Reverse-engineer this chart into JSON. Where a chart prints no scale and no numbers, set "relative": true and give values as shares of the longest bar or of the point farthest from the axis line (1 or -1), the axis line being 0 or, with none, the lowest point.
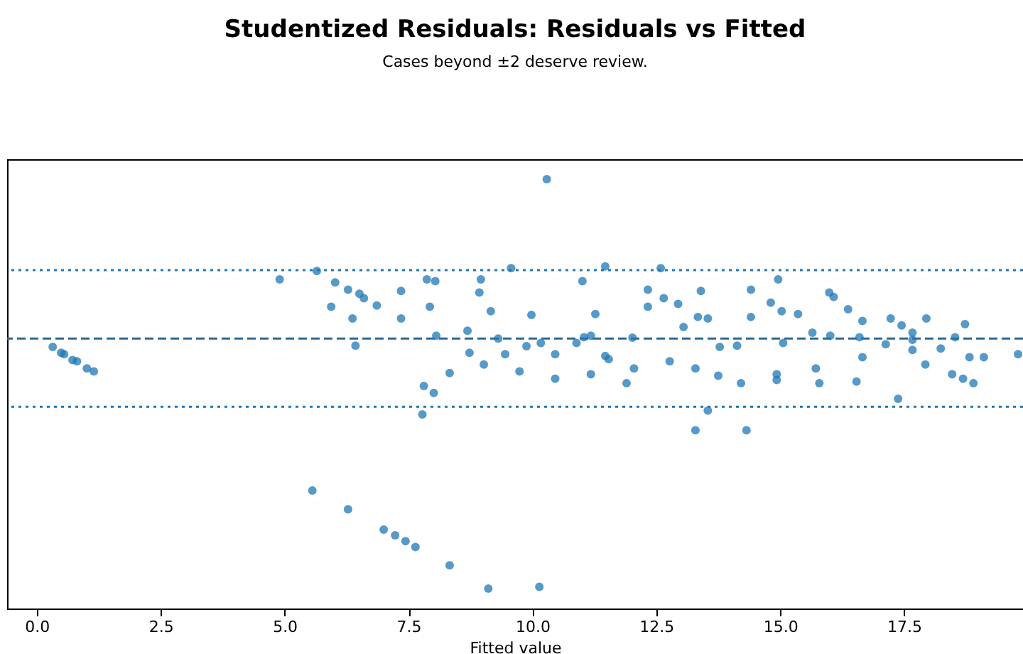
{
  "chart_data": {
    "type": "scatter",
    "title": "Studentized Residuals: Residuals vs Fitted",
    "subtitle": "Cases beyond ±2 deserve review.",
    "xlabel": "Fitted value",
    "x": [
      0.32,
      0.49,
      0.55,
      0.72,
      0.81,
      1.01,
      1.15,
      4.9,
      5.65,
      6.02,
      5.94,
      6.28,
      6.37,
      6.43,
      6.51,
      6.6,
      6.86,
      7.35,
      7.87,
      8.04,
      5.56,
      6.28,
      7.0,
      7.23,
      7.44,
      7.64,
      8.33,
      9.11,
      10.14,
      10.29,
      9.57,
      11.47,
      12.59,
      11.01,
      7.81,
      7.78,
      8.01,
      8.33,
      13.29,
      13.54,
      14.32,
      17.38,
      16.54,
      17.93,
      19.8,
      8.96,
      14.96,
      15.99,
      18.73,
      14.93,
      15.79,
      12.65,
      13.4,
      14.81,
      7.35,
      8.06,
      8.73,
      7.93,
      8.69,
      9.45,
      8.93,
      9.98,
      11.04,
      9.16,
      10.17,
      11.18,
      9.02,
      9.74,
      10.46,
      9.31,
      9.88,
      10.46,
      11.27,
      12.02,
      12.77,
      10.89,
      11.47,
      12.05,
      11.18,
      11.54,
      11.9,
      12.33,
      12.94,
      13.54,
      12.33,
      13.05,
      13.78,
      13.29,
      13.75,
      14.21,
      13.34,
      14.13,
      14.93,
      14.41,
      15.03,
      15.65,
      14.41,
      15.06,
      15.72,
      15.36,
      16.01,
      16.66,
      16.08,
      16.37,
      16.66,
      17.23,
      17.45,
      17.67,
      17.95,
      18.53,
      19.11,
      17.67,
      18.24,
      18.82,
      18.47,
      18.69,
      18.9,
      16.6,
      17.13,
      17.67
    ],
    "series": [
      {
        "color": "#1f77b4",
        "values": [
          -0.034,
          -0.057,
          -0.063,
          -0.086,
          -0.091,
          -0.12,
          -0.132,
          0.236,
          0.27,
          0.224,
          0.127,
          0.195,
          0.08,
          -0.029,
          0.179,
          0.161,
          0.132,
          0.19,
          0.236,
          0.229,
          -0.608,
          -0.683,
          -0.764,
          -0.787,
          -0.81,
          -0.834,
          -0.907,
          -1,
          -0.993,
          0.637,
          0.281,
          0.288,
          0.281,
          0.229,
          -0.19,
          -0.304,
          -0.218,
          -0.138,
          -0.367,
          -0.288,
          -0.367,
          -0.241,
          -0.172,
          -0.104,
          -0.063,
          0.236,
          0.236,
          0.184,
          0.057,
          -0.166,
          -0.179,
          0.161,
          0.19,
          0.143,
          0.08,
          0.011,
          -0.057,
          0.127,
          0.031,
          -0.063,
          0.184,
          0.094,
          0.005,
          0.109,
          -0.018,
          -0.143,
          -0.104,
          -0.132,
          -0.161,
          0,
          -0.031,
          -0.063,
          0.098,
          0.003,
          -0.091,
          -0.018,
          -0.07,
          -0.12,
          0.011,
          -0.083,
          -0.179,
          0.195,
          0.138,
          0.08,
          0.127,
          0.046,
          -0.034,
          -0.12,
          -0.149,
          -0.179,
          0.086,
          -0.029,
          -0.143,
          0.195,
          0.109,
          0.023,
          0.086,
          -0.018,
          -0.12,
          0.098,
          0.011,
          -0.075,
          0.166,
          0.117,
          0.07,
          0.08,
          0.052,
          0.023,
          0.08,
          0.005,
          -0.075,
          -0.005,
          -0.04,
          -0.075,
          -0.143,
          -0.161,
          -0.179,
          0.005,
          -0.023,
          -0.046
        ]
      }
    ],
    "relative": true,
    "xlim": [
      -0.6,
      19.9
    ],
    "xticks": [
      {
        "value": 0,
        "label": "0.0"
      },
      2.5,
      {
        "value": 5,
        "label": "5.0"
      },
      7.5,
      {
        "value": 10,
        "label": "10.0"
      },
      12.5,
      {
        "value": 15,
        "label": "15.0"
      },
      17.5
    ],
    "ref_lines": [
      {
        "axis": "y",
        "value": 0.273,
        "color": "#1f77b4",
        "line_style": "dotted"
      },
      {
        "axis": "y",
        "value": 0,
        "color": "#2e6a94",
        "line_style": "dashed"
      },
      {
        "axis": "y",
        "value": -0.273,
        "color": "#1f77b4",
        "line_style": "dotted"
      }
    ],
    "marker": "circle",
    "grid": false
  }
}
